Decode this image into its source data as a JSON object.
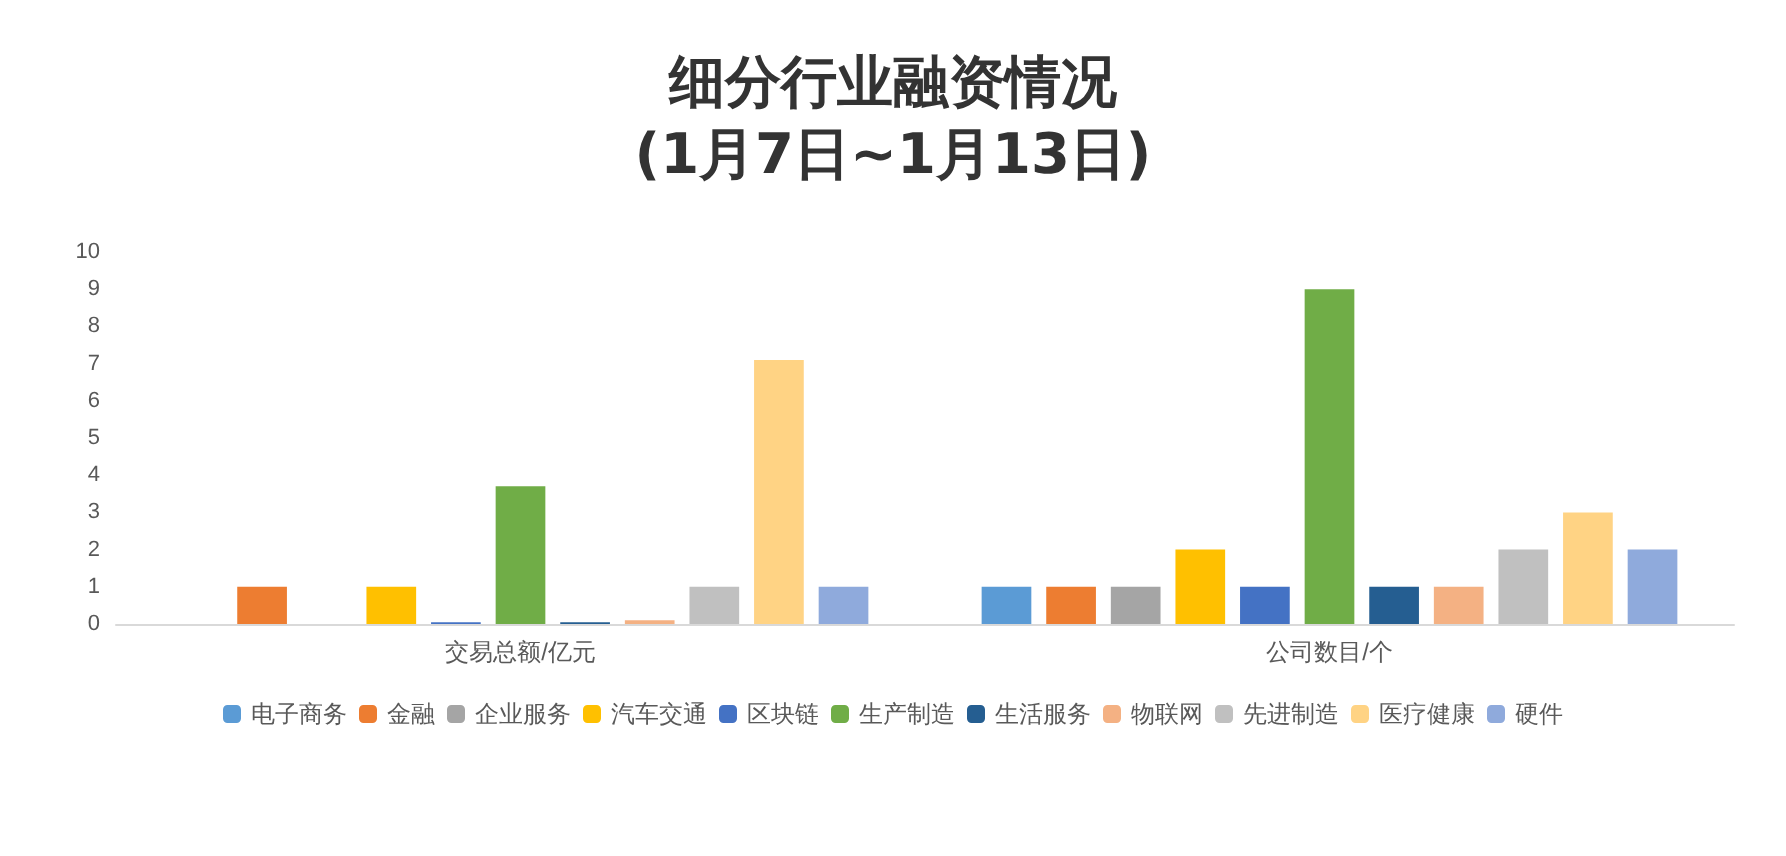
{
  "chart_data": {
    "type": "bar",
    "title": "细分行业融资情况\n(1月7日~1月13日)",
    "categories": [
      "交易总额/亿元",
      "公司数目/个"
    ],
    "series": [
      {
        "name": "电子商务",
        "color": "#5b9bd5",
        "values": [
          0,
          1
        ]
      },
      {
        "name": "金融",
        "color": "#ed7d31",
        "values": [
          1,
          1
        ]
      },
      {
        "name": "企业服务",
        "color": "#a5a5a5",
        "values": [
          0,
          1
        ]
      },
      {
        "name": "汽车交通",
        "color": "#ffc000",
        "values": [
          1,
          2
        ]
      },
      {
        "name": "区块链",
        "color": "#4472c4",
        "values": [
          0.05,
          1
        ]
      },
      {
        "name": "生产制造",
        "color": "#70ad47",
        "values": [
          3.7,
          9
        ]
      },
      {
        "name": "生活服务",
        "color": "#255e91",
        "values": [
          0.05,
          1
        ]
      },
      {
        "name": "物联网",
        "color": "#f4b183",
        "values": [
          0.1,
          1
        ]
      },
      {
        "name": "先进制造",
        "color": "#c0c0c0",
        "values": [
          1,
          2
        ]
      },
      {
        "name": "医疗健康",
        "color": "#ffd384",
        "values": [
          7.1,
          3
        ]
      },
      {
        "name": "硬件",
        "color": "#8faadc",
        "values": [
          1,
          2
        ]
      }
    ],
    "ylim": [
      0,
      10
    ],
    "yticks": [
      0,
      1,
      2,
      3,
      4,
      5,
      6,
      7,
      8,
      9,
      10
    ],
    "grid": false,
    "legend": "bottom"
  }
}
